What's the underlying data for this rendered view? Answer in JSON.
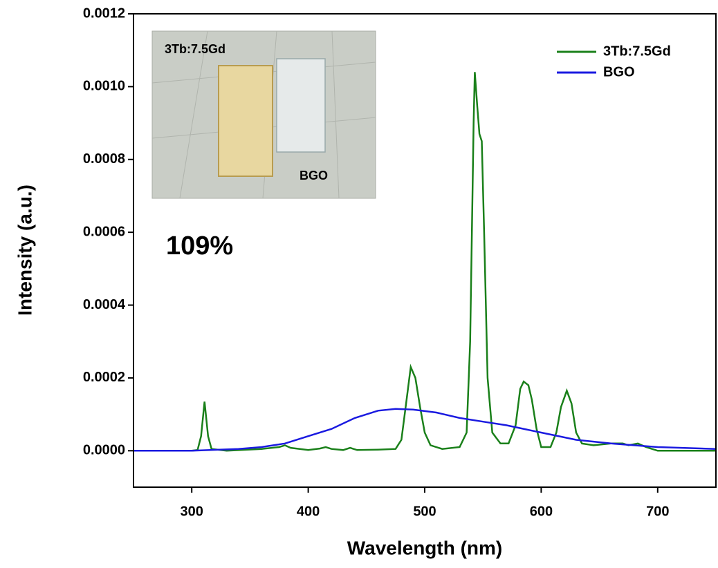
{
  "chart_data": {
    "type": "line",
    "xlabel": "Wavelength (nm)",
    "ylabel": "Intensity (a.u.)",
    "xlim": [
      250,
      750
    ],
    "xticks": [
      300,
      400,
      500,
      600,
      700
    ],
    "ylim": [
      -0.0001,
      0.0012
    ],
    "yticks": [
      {
        "value": 0,
        "label": "0.0000"
      },
      {
        "value": 0.0002,
        "label": "0.0002"
      },
      {
        "value": 0.0004,
        "label": "0.0004"
      },
      {
        "value": 0.0006,
        "label": "0.0006"
      },
      {
        "value": 0.0008,
        "label": "0.0008"
      },
      {
        "value": 0.001,
        "label": "0.0010"
      },
      {
        "value": 0.0012,
        "label": "0.0012"
      }
    ],
    "legend": "upper right",
    "annotation": "109%",
    "inset_labels": [
      {
        "text": "3Tb:7.5Gd",
        "color": "#1e8a1e"
      },
      {
        "text": "BGO",
        "color": "#1010e0"
      }
    ],
    "series": [
      {
        "name": "3Tb:7.5Gd",
        "color": "#1a801a",
        "x": [
          250,
          300,
          305,
          308,
          311,
          314,
          317,
          330,
          360,
          375,
          380,
          385,
          400,
          410,
          415,
          420,
          430,
          436,
          442,
          460,
          475,
          480,
          484,
          488,
          492,
          496,
          500,
          505,
          515,
          530,
          536,
          539,
          542,
          543,
          545,
          547,
          549,
          551,
          554,
          558,
          565,
          572,
          578,
          582,
          585,
          589,
          592,
          596,
          600,
          608,
          613,
          617,
          622,
          626,
          630,
          635,
          645,
          660,
          670,
          675,
          683,
          690,
          700,
          750
        ],
        "values": [
          0,
          0,
          2e-06,
          4e-05,
          0.000135,
          4e-05,
          5e-06,
          0,
          5e-06,
          1e-05,
          1.5e-05,
          8e-06,
          2e-06,
          6e-06,
          1e-05,
          5e-06,
          2e-06,
          8e-06,
          2e-06,
          3e-06,
          5e-06,
          3e-05,
          0.00013,
          0.00023,
          0.0002,
          0.00012,
          5e-05,
          1.5e-05,
          5e-06,
          1e-05,
          5e-05,
          0.0003,
          0.0009,
          0.00104,
          0.00095,
          0.00087,
          0.00085,
          0.0006,
          0.0002,
          5e-05,
          2e-05,
          2e-05,
          7e-05,
          0.00017,
          0.00019,
          0.00018,
          0.00014,
          6e-05,
          1e-05,
          1e-05,
          5e-05,
          0.00012,
          0.000165,
          0.00013,
          5e-05,
          2e-05,
          1.5e-05,
          2e-05,
          2e-05,
          1.5e-05,
          2e-05,
          1e-05,
          0,
          0
        ]
      },
      {
        "name": "BGO",
        "color": "#1a1ae0",
        "x": [
          250,
          300,
          340,
          360,
          380,
          400,
          420,
          440,
          460,
          475,
          490,
          510,
          530,
          550,
          570,
          600,
          630,
          660,
          700,
          750
        ],
        "values": [
          0,
          0,
          5e-06,
          1e-05,
          2e-05,
          4e-05,
          6e-05,
          9e-05,
          0.00011,
          0.000115,
          0.000113,
          0.000105,
          9e-05,
          8e-05,
          7e-05,
          5e-05,
          3e-05,
          2e-05,
          1e-05,
          5e-06
        ]
      }
    ]
  }
}
